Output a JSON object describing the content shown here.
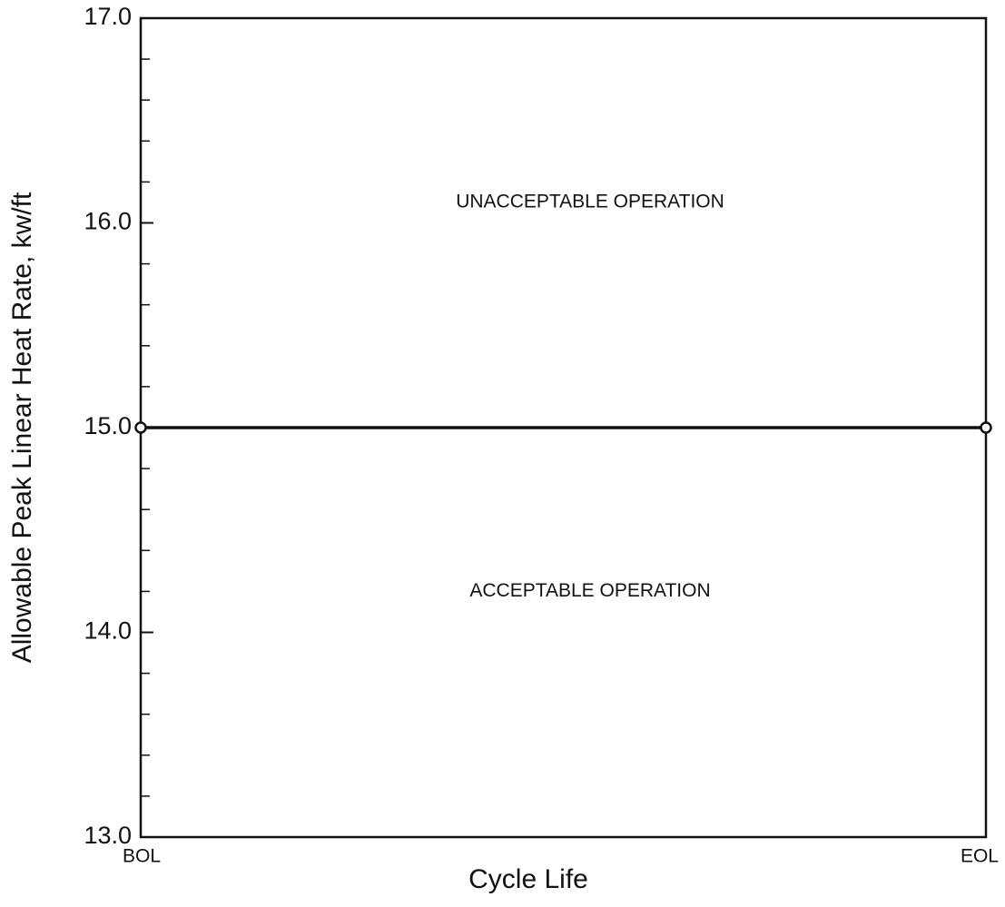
{
  "chart_data": {
    "type": "line",
    "y_label": "Allowable Peak Linear Heat Rate, kw/ft",
    "x_label": "Cycle Life",
    "categories": [
      "BOL",
      "EOL"
    ],
    "values": [
      15.0,
      15.0
    ],
    "color": "#111111",
    "ylim": [
      13.0,
      17.0
    ],
    "yticks": [
      {
        "value": 13,
        "label": "13.0"
      },
      {
        "value": 14,
        "label": "14.0"
      },
      {
        "value": 15,
        "label": "15.0"
      },
      {
        "value": 16,
        "label": "16.0"
      },
      {
        "value": 17,
        "label": "17.0"
      }
    ],
    "yminorticks": [
      13.2,
      13.4,
      13.6,
      13.8,
      14.2,
      14.4,
      14.6,
      14.8,
      15.2,
      15.4,
      15.6,
      15.8,
      16.2,
      16.4,
      16.6,
      16.8
    ],
    "annotations": [
      {
        "text": "UNACCEPTABLE OPERATION",
        "y": 16.1
      },
      {
        "text": "ACCEPTABLE OPERATION",
        "y": 14.2
      }
    ],
    "grid": false
  }
}
